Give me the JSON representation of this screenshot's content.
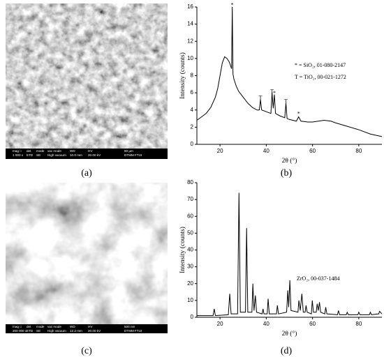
{
  "panels": {
    "a": {
      "label": "(a)",
      "info_bar": [
        [
          "mag □",
          "det",
          "mode",
          "vac mode",
          "WD",
          "HV",
          "50 μm"
        ],
        [
          "1 000 x",
          "ETD",
          "SE",
          "High vacuum",
          "10.0 mm",
          "20.00 kV",
          "DTMM FTUI"
        ]
      ]
    },
    "c": {
      "label": "(c)",
      "info_bar": [
        [
          "mag □",
          "det",
          "mode",
          "vac mode",
          "WD",
          "HV",
          "500 nm"
        ],
        [
          "200 000 x",
          "ETD",
          "SE",
          "High vacuum",
          "12.2 mm",
          "20.00 kV",
          "DTMM FTUI"
        ]
      ]
    }
  },
  "chart_data": [
    {
      "type": "line",
      "label": "(b)",
      "x_label": "2θ (°)",
      "y_label": "Intensity (counts)",
      "annotations": [
        "* = SiO₂, 01-080-2147",
        "T = TiO₂, 00-021-1272"
      ],
      "peak_markers": [
        {
          "x": 25.3,
          "y": 16.2,
          "label": "*"
        },
        {
          "x": 37.5,
          "y": 5.4,
          "label": "T"
        },
        {
          "x": 42.5,
          "y": 6.1,
          "label": "T"
        },
        {
          "x": 43.5,
          "y": 5.9,
          "label": "*"
        },
        {
          "x": 48.5,
          "y": 5,
          "label": "T"
        },
        {
          "x": 54,
          "y": 3.5,
          "label": "*"
        }
      ],
      "x": [
        10,
        12,
        14,
        16,
        18,
        19,
        20,
        21,
        22,
        23,
        24,
        25,
        25.3,
        25.6,
        26,
        27,
        28,
        30,
        32,
        34,
        36,
        37,
        37.5,
        38,
        40,
        42,
        42.5,
        43,
        43.5,
        44,
        46,
        48,
        48.5,
        49,
        50,
        53,
        54,
        55,
        58,
        60,
        65,
        68,
        70,
        75,
        80,
        85,
        90
      ],
      "series": [
        {
          "color": "#000000",
          "values": [
            2.8,
            3.2,
            3.6,
            4.3,
            5.5,
            6.5,
            8,
            9.5,
            10.2,
            10,
            9.6,
            8.8,
            16,
            8.2,
            7.6,
            6.8,
            6.2,
            5.5,
            4.8,
            4.3,
            4,
            4,
            5.2,
            4,
            3.8,
            3.6,
            6,
            4.2,
            5.8,
            3.6,
            3.3,
            3.1,
            4.8,
            3,
            2.9,
            2.7,
            3.2,
            2.7,
            2.6,
            2.6,
            2.8,
            2.7,
            2.5,
            2.1,
            1.7,
            1.2,
            0.9
          ]
        }
      ],
      "xlim": [
        10,
        90
      ],
      "xticks": [
        20,
        40,
        60,
        80
      ],
      "ylim": [
        0,
        16
      ],
      "yticks": [
        0,
        2,
        4,
        6,
        8,
        10,
        12,
        14,
        16
      ]
    },
    {
      "type": "line",
      "label": "(d)",
      "x_label": "2θ (°)",
      "y_label": "Intensity (counts)",
      "annotations": [
        "ZrO₂, 00-037-1484"
      ],
      "x": [
        10,
        17,
        17.5,
        18,
        23.6,
        24.2,
        24.8,
        27.6,
        28.2,
        28.8,
        31,
        31.5,
        32,
        33.8,
        34.2,
        34.7,
        35.3,
        35.8,
        38.2,
        38.6,
        39,
        40.4,
        40.8,
        41.3,
        44.4,
        44.8,
        45.3,
        48.8,
        49.3,
        49.7,
        50.2,
        50.7,
        53.7,
        54.1,
        54.7,
        55.4,
        56,
        56.8,
        57.2,
        57.7,
        59.5,
        59.9,
        60.4,
        61.6,
        62,
        62.5,
        63,
        63.5,
        65.3,
        65.7,
        66.2,
        70.8,
        71.2,
        71.7,
        74.6,
        75,
        75.5,
        79.6,
        80,
        80.5,
        84.6,
        85,
        85.5,
        88.6,
        89,
        90
      ],
      "series": [
        {
          "color": "#000000",
          "values": [
            1,
            1,
            5,
            1,
            1.5,
            14,
            2,
            2,
            74,
            3,
            3,
            53,
            3,
            3,
            20,
            4,
            13,
            3,
            2,
            5,
            2,
            2,
            11,
            2,
            2,
            7,
            2,
            3,
            16,
            6,
            22,
            4,
            3,
            10,
            4,
            14,
            3,
            3,
            7,
            3,
            2,
            10,
            3,
            3,
            8,
            4,
            9,
            3,
            2,
            6,
            2,
            1.5,
            4,
            1.5,
            1.5,
            3,
            1.5,
            1.5,
            3,
            1.5,
            1.5,
            3,
            1.5,
            2,
            3.5,
            2
          ]
        }
      ],
      "xlim": [
        10,
        90
      ],
      "xticks": [
        20,
        40,
        60,
        80
      ],
      "ylim": [
        0,
        80
      ],
      "yticks": [
        0,
        10,
        20,
        30,
        40,
        50,
        60,
        70,
        80
      ]
    }
  ]
}
